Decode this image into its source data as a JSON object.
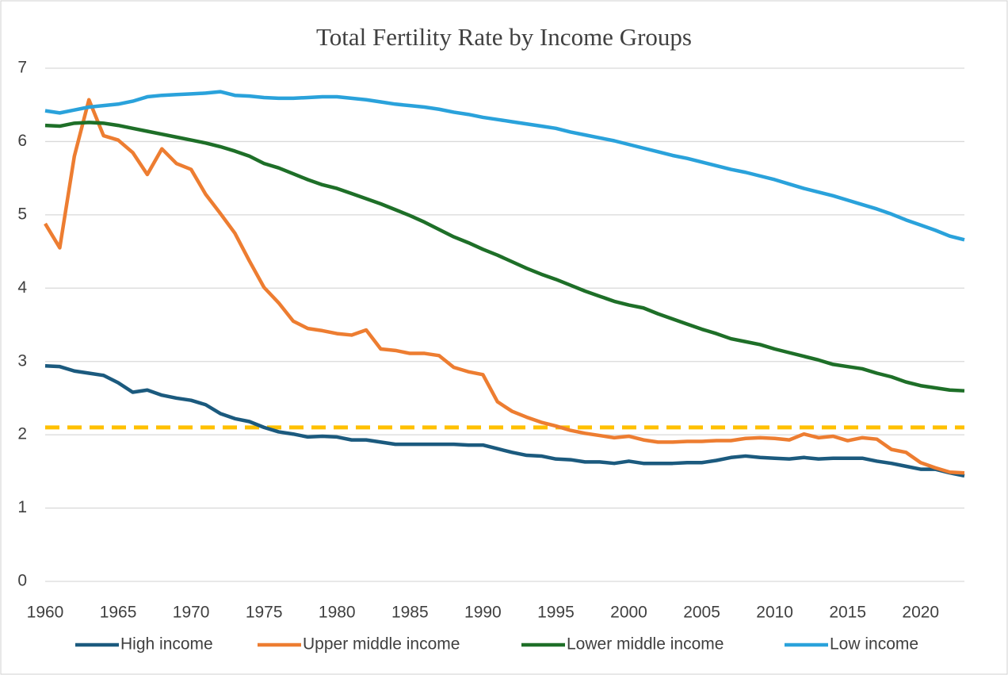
{
  "chart_data": {
    "type": "line",
    "title": "Total Fertility Rate by Income Groups",
    "x": [
      1960,
      1961,
      1962,
      1963,
      1964,
      1965,
      1966,
      1967,
      1968,
      1969,
      1970,
      1971,
      1972,
      1973,
      1974,
      1975,
      1976,
      1977,
      1978,
      1979,
      1980,
      1981,
      1982,
      1983,
      1984,
      1985,
      1986,
      1987,
      1988,
      1989,
      1990,
      1991,
      1992,
      1993,
      1994,
      1995,
      1996,
      1997,
      1998,
      1999,
      2000,
      2001,
      2002,
      2003,
      2004,
      2005,
      2006,
      2007,
      2008,
      2009,
      2010,
      2011,
      2012,
      2013,
      2014,
      2015,
      2016,
      2017,
      2018,
      2019,
      2020,
      2021,
      2022,
      2023
    ],
    "series": [
      {
        "name": "High income",
        "color": "#1b5a7e",
        "values": [
          2.94,
          2.93,
          2.87,
          2.84,
          2.81,
          2.71,
          2.58,
          2.61,
          2.54,
          2.5,
          2.47,
          2.41,
          2.29,
          2.22,
          2.18,
          2.1,
          2.04,
          2.01,
          1.97,
          1.98,
          1.97,
          1.93,
          1.93,
          1.9,
          1.87,
          1.87,
          1.87,
          1.87,
          1.87,
          1.86,
          1.86,
          1.81,
          1.76,
          1.72,
          1.71,
          1.67,
          1.66,
          1.63,
          1.63,
          1.61,
          1.64,
          1.61,
          1.61,
          1.61,
          1.62,
          1.62,
          1.65,
          1.69,
          1.71,
          1.69,
          1.68,
          1.67,
          1.69,
          1.67,
          1.68,
          1.68,
          1.68,
          1.64,
          1.61,
          1.57,
          1.53,
          1.53,
          1.48,
          1.44
        ]
      },
      {
        "name": "Upper middle income",
        "color": "#ed7d31",
        "values": [
          4.88,
          4.55,
          5.8,
          6.57,
          6.08,
          6.02,
          5.85,
          5.55,
          5.9,
          5.7,
          5.62,
          5.28,
          5.02,
          4.75,
          4.37,
          4.01,
          3.8,
          3.55,
          3.45,
          3.42,
          3.38,
          3.36,
          3.43,
          3.17,
          3.15,
          3.11,
          3.11,
          3.08,
          2.92,
          2.86,
          2.82,
          2.45,
          2.32,
          2.24,
          2.17,
          2.12,
          2.06,
          2.02,
          1.99,
          1.96,
          1.98,
          1.93,
          1.9,
          1.9,
          1.91,
          1.91,
          1.92,
          1.92,
          1.95,
          1.96,
          1.95,
          1.93,
          2.01,
          1.96,
          1.98,
          1.92,
          1.96,
          1.94,
          1.8,
          1.76,
          1.62,
          1.55,
          1.49,
          1.48
        ]
      },
      {
        "name": "Lower middle income",
        "color": "#1e6f28",
        "values": [
          6.22,
          6.21,
          6.25,
          6.26,
          6.25,
          6.22,
          6.18,
          6.14,
          6.1,
          6.06,
          6.02,
          5.98,
          5.93,
          5.87,
          5.8,
          5.7,
          5.64,
          5.56,
          5.48,
          5.41,
          5.36,
          5.29,
          5.22,
          5.15,
          5.07,
          4.99,
          4.9,
          4.8,
          4.7,
          4.62,
          4.53,
          4.45,
          4.36,
          4.27,
          4.19,
          4.12,
          4.04,
          3.96,
          3.89,
          3.82,
          3.77,
          3.73,
          3.65,
          3.58,
          3.51,
          3.44,
          3.38,
          3.31,
          3.27,
          3.23,
          3.17,
          3.12,
          3.07,
          3.02,
          2.96,
          2.93,
          2.9,
          2.84,
          2.79,
          2.72,
          2.67,
          2.64,
          2.61,
          2.6
        ]
      },
      {
        "name": "Low income",
        "color": "#2aa2db",
        "values": [
          6.42,
          6.39,
          6.43,
          6.47,
          6.49,
          6.51,
          6.55,
          6.61,
          6.63,
          6.64,
          6.65,
          6.66,
          6.68,
          6.63,
          6.62,
          6.6,
          6.59,
          6.59,
          6.6,
          6.61,
          6.61,
          6.59,
          6.57,
          6.54,
          6.51,
          6.49,
          6.47,
          6.44,
          6.4,
          6.37,
          6.33,
          6.3,
          6.27,
          6.24,
          6.21,
          6.18,
          6.13,
          6.09,
          6.05,
          6.01,
          5.96,
          5.91,
          5.86,
          5.81,
          5.77,
          5.72,
          5.67,
          5.62,
          5.58,
          5.53,
          5.48,
          5.42,
          5.36,
          5.31,
          5.26,
          5.2,
          5.14,
          5.08,
          5.01,
          4.93,
          4.86,
          4.79,
          4.71,
          4.66
        ]
      }
    ],
    "reference_line": {
      "value": 2.1,
      "color": "#ffc000"
    },
    "xlim": [
      1960,
      2023
    ],
    "xticks": [
      1960,
      1965,
      1970,
      1975,
      1980,
      1985,
      1990,
      1995,
      2000,
      2005,
      2010,
      2015,
      2020
    ],
    "ylim": [
      0,
      7
    ],
    "yticks": [
      0,
      1,
      2,
      3,
      4,
      5,
      6,
      7
    ],
    "grid": true,
    "legend": "bottom"
  }
}
